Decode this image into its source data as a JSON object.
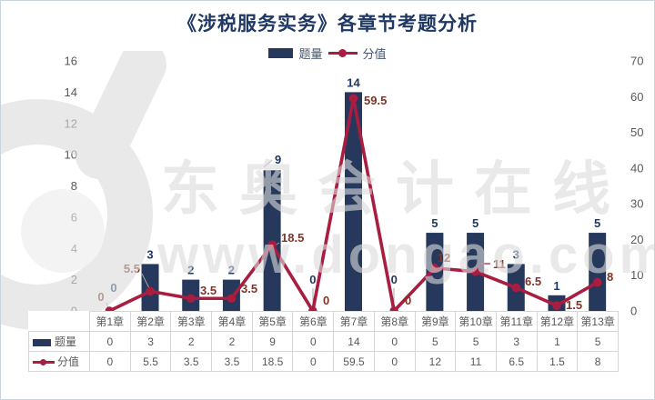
{
  "title": "《涉税服务实务》各章节考题分析",
  "legend": {
    "items": [
      {
        "label": "题量"
      },
      {
        "label": "分值"
      }
    ]
  },
  "watermark": {
    "brand": "东奥会计在线",
    "url": "www.dongao.com",
    "logo": "dongao-d-logo"
  },
  "colors": {
    "bar": "#26395c",
    "line": "#a81d40",
    "bar_label": "#1f3864",
    "line_label": "#7e3527",
    "title": "#1f3864",
    "axis_text": "#595959",
    "leader": "#a6a6a6",
    "table_border": "#d6d6d6",
    "table_text": "#595959"
  },
  "chart_data": {
    "type": "bar",
    "subtype": "combo-bar-line",
    "title": "《涉税服务实务》各章节考题分析",
    "categories": [
      "第1章",
      "第2章",
      "第3章",
      "第4章",
      "第5章",
      "第6章",
      "第7章",
      "第8章",
      "第9章",
      "第10章",
      "第11章",
      "第12章",
      "第13章"
    ],
    "series": [
      {
        "name": "题量",
        "type": "bar",
        "axis": "left",
        "values": [
          0,
          3,
          2,
          2,
          9,
          0,
          14,
          0,
          5,
          5,
          3,
          1,
          5
        ]
      },
      {
        "name": "分值",
        "type": "line",
        "axis": "right",
        "values": [
          0,
          5.5,
          3.5,
          3.5,
          18.5,
          0,
          59.5,
          0,
          12,
          11,
          6.5,
          1.5,
          8
        ]
      }
    ],
    "left_axis": {
      "min": 0,
      "max": 16,
      "step": 2,
      "ticks": [
        0,
        2,
        4,
        6,
        8,
        10,
        12,
        14,
        16
      ]
    },
    "right_axis": {
      "min": 0,
      "max": 70,
      "step": 10,
      "ticks": [
        0,
        10,
        20,
        30,
        40,
        50,
        60,
        70
      ]
    },
    "grid": false,
    "legend_position": "top",
    "data_labels": true,
    "data_table_shown": true
  }
}
